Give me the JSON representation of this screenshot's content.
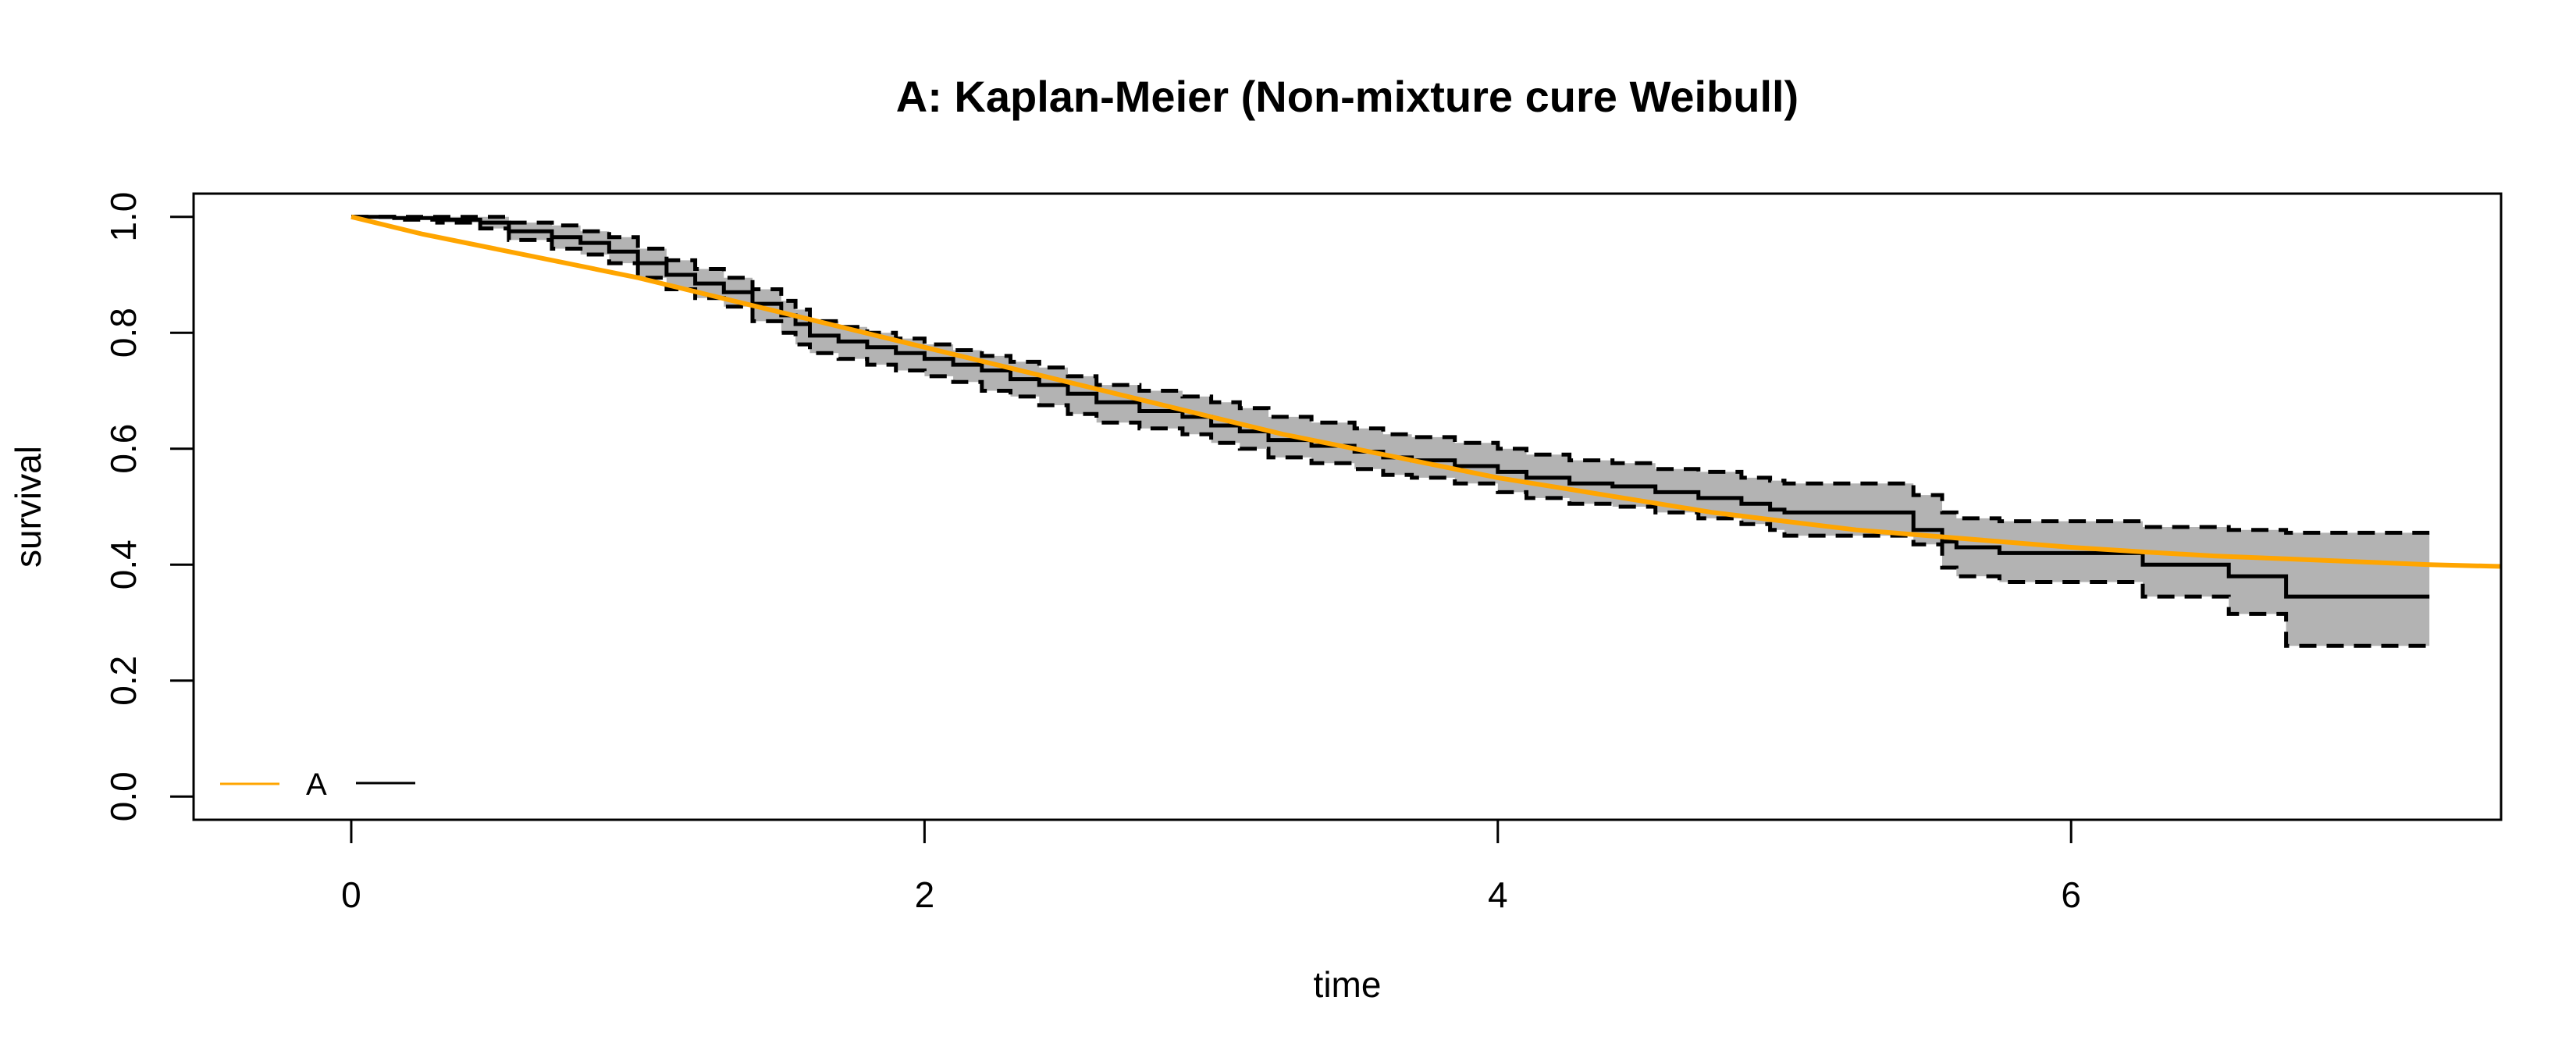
{
  "chart_data": {
    "type": "line",
    "title": "A: Kaplan-Meier (Non-mixture cure Weibull)",
    "xlabel": "time",
    "ylabel": "survival",
    "xlim": [
      -0.55,
      7.5
    ],
    "ylim": [
      -0.04,
      1.04
    ],
    "xticks": [
      0,
      2,
      4,
      6
    ],
    "xtick_labels": [
      "0",
      "2",
      "4",
      "6"
    ],
    "yticks": [
      0.0,
      0.2,
      0.4,
      0.6,
      0.8,
      1.0
    ],
    "ytick_labels": [
      "0.0",
      "0.2",
      "0.4",
      "0.6",
      "0.8",
      "1.0"
    ],
    "grid": false,
    "legend": {
      "placement": "bottom-left",
      "label": "A"
    },
    "colors": {
      "fit": "#FFA500",
      "km": "#000000",
      "ci_fill": "#B3B3B3"
    },
    "series": [
      {
        "name": "A",
        "kind": "fitted-curve",
        "x": [
          0,
          0.25,
          0.5,
          0.75,
          1.0,
          1.25,
          1.5,
          1.75,
          2.0,
          2.25,
          2.5,
          2.75,
          3.0,
          3.25,
          3.5,
          3.75,
          4.0,
          4.25,
          4.5,
          4.75,
          5.0,
          5.25,
          5.5,
          5.75,
          6.0,
          6.25,
          6.5,
          6.75,
          7.0,
          7.25,
          7.5
        ],
        "y": [
          1.0,
          0.97,
          0.945,
          0.92,
          0.895,
          0.865,
          0.835,
          0.805,
          0.775,
          0.745,
          0.715,
          0.685,
          0.655,
          0.625,
          0.6,
          0.575,
          0.55,
          0.53,
          0.51,
          0.49,
          0.475,
          0.46,
          0.45,
          0.44,
          0.43,
          0.422,
          0.415,
          0.41,
          0.405,
          0.4,
          0.397
        ]
      },
      {
        "kind": "km-step",
        "x": [
          0,
          0.15,
          0.3,
          0.45,
          0.55,
          0.7,
          0.8,
          0.9,
          1.0,
          1.1,
          1.2,
          1.3,
          1.4,
          1.5,
          1.55,
          1.6,
          1.7,
          1.8,
          1.9,
          2.0,
          2.1,
          2.2,
          2.3,
          2.4,
          2.5,
          2.6,
          2.75,
          2.9,
          3.0,
          3.1,
          3.2,
          3.35,
          3.5,
          3.6,
          3.7,
          3.85,
          4.0,
          4.1,
          4.25,
          4.4,
          4.55,
          4.7,
          4.85,
          4.95,
          5.0,
          5.45,
          5.55,
          5.6,
          5.75,
          6.25,
          6.55,
          6.75,
          7.25
        ],
        "y": [
          1.0,
          0.998,
          0.995,
          0.99,
          0.975,
          0.965,
          0.955,
          0.94,
          0.92,
          0.9,
          0.885,
          0.87,
          0.85,
          0.83,
          0.815,
          0.795,
          0.785,
          0.775,
          0.765,
          0.755,
          0.745,
          0.735,
          0.72,
          0.71,
          0.695,
          0.68,
          0.665,
          0.655,
          0.64,
          0.63,
          0.615,
          0.605,
          0.595,
          0.585,
          0.58,
          0.57,
          0.56,
          0.55,
          0.54,
          0.535,
          0.525,
          0.515,
          0.505,
          0.495,
          0.49,
          0.46,
          0.44,
          0.43,
          0.42,
          0.4,
          0.38,
          0.345,
          0.345
        ]
      },
      {
        "kind": "km-upper-ci",
        "x": [
          0,
          0.15,
          0.3,
          0.45,
          0.55,
          0.7,
          0.8,
          0.9,
          1.0,
          1.1,
          1.2,
          1.3,
          1.4,
          1.5,
          1.55,
          1.6,
          1.7,
          1.8,
          1.9,
          2.0,
          2.1,
          2.2,
          2.3,
          2.4,
          2.5,
          2.6,
          2.75,
          2.9,
          3.0,
          3.1,
          3.2,
          3.35,
          3.5,
          3.6,
          3.7,
          3.85,
          4.0,
          4.1,
          4.25,
          4.4,
          4.55,
          4.7,
          4.85,
          4.95,
          5.0,
          5.45,
          5.55,
          5.6,
          5.75,
          6.25,
          6.55,
          6.75,
          7.25
        ],
        "y": [
          1.0,
          1.0,
          1.0,
          1.0,
          0.99,
          0.985,
          0.975,
          0.965,
          0.945,
          0.925,
          0.91,
          0.895,
          0.875,
          0.855,
          0.84,
          0.82,
          0.81,
          0.8,
          0.79,
          0.78,
          0.77,
          0.76,
          0.75,
          0.74,
          0.725,
          0.71,
          0.7,
          0.69,
          0.68,
          0.67,
          0.655,
          0.645,
          0.635,
          0.625,
          0.62,
          0.61,
          0.6,
          0.59,
          0.58,
          0.575,
          0.565,
          0.56,
          0.55,
          0.545,
          0.54,
          0.52,
          0.49,
          0.48,
          0.475,
          0.465,
          0.46,
          0.455,
          0.455
        ]
      },
      {
        "kind": "km-lower-ci",
        "x": [
          0,
          0.15,
          0.3,
          0.45,
          0.55,
          0.7,
          0.8,
          0.9,
          1.0,
          1.1,
          1.2,
          1.3,
          1.4,
          1.5,
          1.55,
          1.6,
          1.7,
          1.8,
          1.9,
          2.0,
          2.1,
          2.2,
          2.3,
          2.4,
          2.5,
          2.6,
          2.75,
          2.9,
          3.0,
          3.1,
          3.2,
          3.35,
          3.5,
          3.6,
          3.7,
          3.85,
          4.0,
          4.1,
          4.25,
          4.4,
          4.55,
          4.7,
          4.85,
          4.95,
          5.0,
          5.45,
          5.55,
          5.6,
          5.75,
          6.25,
          6.55,
          6.75,
          7.25
        ],
        "y": [
          1.0,
          0.995,
          0.99,
          0.98,
          0.96,
          0.945,
          0.935,
          0.92,
          0.895,
          0.875,
          0.86,
          0.845,
          0.82,
          0.8,
          0.78,
          0.765,
          0.755,
          0.745,
          0.735,
          0.725,
          0.715,
          0.7,
          0.69,
          0.675,
          0.66,
          0.645,
          0.635,
          0.625,
          0.61,
          0.6,
          0.585,
          0.575,
          0.565,
          0.555,
          0.55,
          0.54,
          0.525,
          0.515,
          0.505,
          0.5,
          0.49,
          0.48,
          0.47,
          0.46,
          0.45,
          0.435,
          0.395,
          0.38,
          0.37,
          0.345,
          0.315,
          0.26,
          0.26
        ]
      }
    ]
  }
}
